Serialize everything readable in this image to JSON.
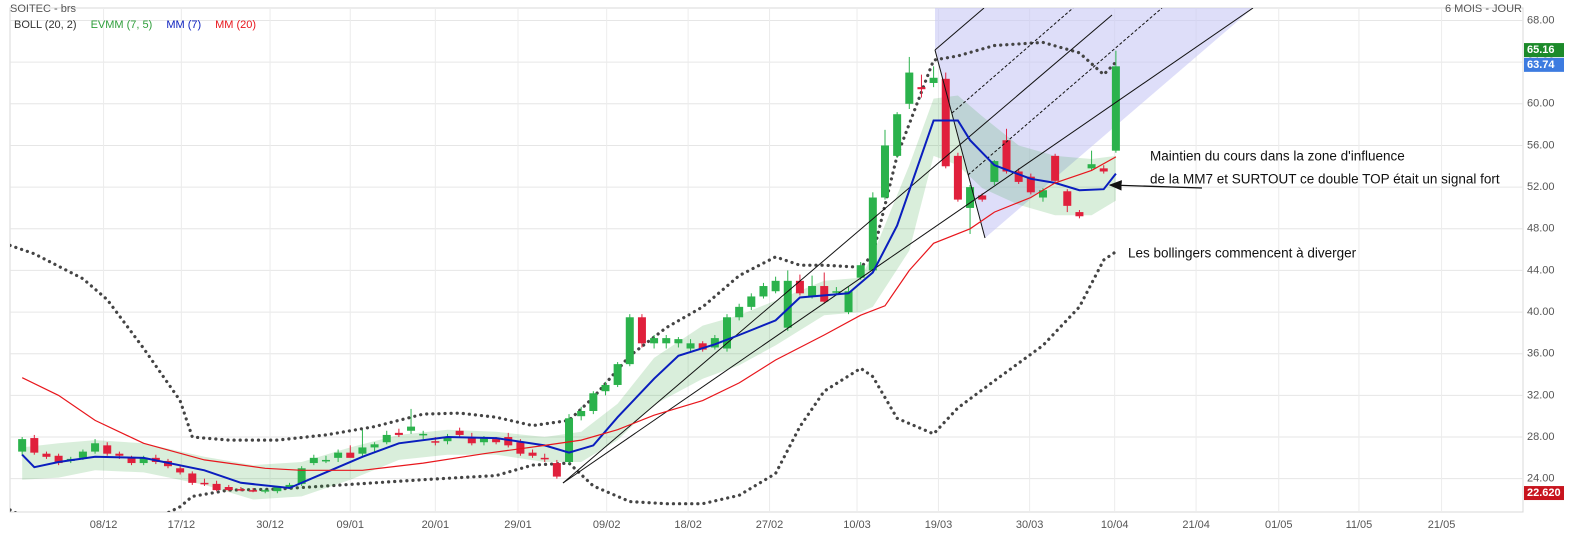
{
  "chart_data": {
    "type": "candlestick",
    "title": "SOITEC - brs",
    "subtitle": "6 MOIS - JOUR",
    "up_color": "#2bb24c",
    "down_color": "#e0203c",
    "open": [
      26.6,
      27.9,
      26.4,
      26.2,
      25.7,
      26,
      26.6,
      27.2,
      26.4,
      26,
      25.5,
      26,
      25.7,
      25,
      24.5,
      23.6,
      23.5,
      23.2,
      23,
      22.9,
      22.8,
      22.8,
      23.2,
      23.5,
      25.5,
      25.8,
      26,
      26.5,
      26.4,
      27,
      27.5,
      28.4,
      28.6,
      28.2,
      27.6,
      27.6,
      28.6,
      28,
      27.5,
      27.8,
      28,
      27.5,
      26.5,
      26,
      25.5,
      25.6,
      30,
      30.5,
      32.4,
      33,
      35,
      39.5,
      37,
      37,
      37,
      36.5,
      37,
      36.6,
      36.5,
      39.5,
      40.5,
      41.5,
      42,
      38.5,
      43,
      41.5,
      42.5,
      42,
      40,
      43.3,
      44,
      51,
      55,
      60,
      61.6,
      62,
      62.4,
      55,
      50,
      51.2,
      52.5,
      56.5,
      53.5,
      53,
      51,
      55,
      51.6,
      49.6,
      53.8,
      53.8,
      55.5
    ],
    "high": [
      28,
      28.2,
      26.6,
      26.4,
      26.1,
      26.8,
      27.8,
      27.5,
      26.6,
      26.2,
      26.2,
      26.3,
      25.9,
      25.2,
      24.7,
      24,
      23.8,
      23.4,
      23.2,
      23.1,
      23,
      23.3,
      23.6,
      25.2,
      26.3,
      26.2,
      26.8,
      27.2,
      28.7,
      27.5,
      28.6,
      28.8,
      30.7,
      28.6,
      28,
      28.3,
      28.9,
      28.4,
      28.1,
      28,
      28.4,
      27.8,
      26.8,
      26.4,
      25.8,
      30.2,
      30.9,
      32.4,
      33.3,
      35.2,
      39.8,
      39.8,
      37.8,
      37.8,
      37.6,
      37.4,
      37.2,
      37.8,
      39.8,
      40.8,
      41.8,
      42.8,
      43.4,
      44,
      43.6,
      43.5,
      43.8,
      42.4,
      42.4,
      44.8,
      51.5,
      57.5,
      59.2,
      64.5,
      62.8,
      63.6,
      63,
      55.3,
      52.2,
      51.4,
      54.6,
      57.6,
      53.8,
      53.3,
      51.9,
      55.2,
      51.8,
      49.8,
      55.5,
      54.1,
      65.1
    ],
    "low": [
      26.2,
      26.3,
      25.9,
      25.3,
      25.5,
      25.8,
      26.4,
      26.2,
      25.9,
      25.3,
      25.3,
      25.4,
      25,
      24.4,
      23.4,
      23.3,
      22.8,
      22.8,
      22.8,
      22.7,
      22.6,
      22.6,
      23,
      23.3,
      25.3,
      25.5,
      25.6,
      26.2,
      26.2,
      26.6,
      27.3,
      28,
      28.3,
      27.8,
      27.2,
      27.3,
      28,
      27.2,
      27.2,
      27.3,
      27,
      26.2,
      26,
      25.6,
      24,
      25.4,
      29.6,
      30.2,
      32,
      32.8,
      34.8,
      36.6,
      36.5,
      36.5,
      36.6,
      36.2,
      36.2,
      36.4,
      36.2,
      39.2,
      40.2,
      41.3,
      41.8,
      38.2,
      41.6,
      41.3,
      40.8,
      41.6,
      39.8,
      43.1,
      43.8,
      50.8,
      54.8,
      59.5,
      60.6,
      61.6,
      53.8,
      50.6,
      47.5,
      50.6,
      52.2,
      53.3,
      52.3,
      51.3,
      50.6,
      52.4,
      49.6,
      49,
      53.6,
      53.3,
      55.3
    ],
    "close": [
      27.8,
      26.5,
      26.1,
      25.5,
      25.9,
      26.6,
      27.4,
      26.4,
      26.2,
      25.5,
      26,
      25.6,
      25.2,
      24.6,
      23.6,
      23.5,
      22.9,
      22.9,
      22.9,
      22.8,
      22.9,
      23.2,
      23.4,
      25,
      26,
      25.8,
      26.5,
      26,
      27,
      27.3,
      28.2,
      28.2,
      29,
      28.3,
      27.5,
      28,
      28.2,
      27.4,
      27.9,
      27.5,
      27.2,
      26.4,
      26.2,
      25.9,
      24.2,
      29.8,
      30.5,
      32.2,
      33,
      35,
      39.5,
      37,
      37.5,
      37.5,
      37.4,
      37,
      36.4,
      37.5,
      39.5,
      40.5,
      41.5,
      42.5,
      43,
      43,
      41.8,
      42.5,
      41,
      42,
      42,
      44.5,
      51,
      56,
      59,
      63,
      61.4,
      62.5,
      54,
      50.8,
      52,
      50.8,
      54.5,
      53.5,
      52.5,
      51.5,
      51.7,
      52.6,
      50.2,
      49.2,
      54.2,
      53.5,
      63.6
    ],
    "series": [
      {
        "name": "BOLL (20, 2)",
        "type": "bollinger",
        "color": "#444444",
        "x": [
          -1,
          1,
          5,
          7,
          10,
          13,
          14,
          17,
          21,
          25,
          29,
          33,
          36,
          39,
          42,
          45,
          47,
          50,
          53,
          56,
          59,
          62,
          64,
          66,
          69,
          70,
          72,
          75,
          77,
          80,
          84,
          87,
          89,
          90
        ],
        "upper": [
          46.4,
          45.6,
          43.2,
          41.2,
          36.5,
          31.5,
          28,
          27.7,
          27.7,
          28.2,
          29,
          30.2,
          30.3,
          29.9,
          29.1,
          29.6,
          31.8,
          35.8,
          38.5,
          40.5,
          43.5,
          45.3,
          44.5,
          44.5,
          44.3,
          45.5,
          55,
          64.2,
          64.6,
          65.6,
          65.9,
          64.9,
          62.8,
          64
        ],
        "lower": [
          21,
          19.8,
          19.5,
          19.5,
          19.6,
          21.3,
          22.3,
          22.9,
          23,
          23.3,
          23.6,
          23.9,
          24.1,
          24.3,
          25.3,
          25.5,
          23.3,
          21.8,
          21.6,
          21.6,
          22.4,
          24.5,
          29,
          32.4,
          34.6,
          33.8,
          29.8,
          28.3,
          30.8,
          33.4,
          36.8,
          40.5,
          45,
          45.8
        ]
      },
      {
        "name": "EVMM (7, 5)",
        "type": "band",
        "color": "#2e9e3a",
        "x": [
          0,
          3,
          6,
          10,
          15,
          19,
          23,
          27,
          31,
          35,
          39,
          43,
          46,
          49,
          52,
          56,
          59,
          62,
          66,
          69,
          70,
          73,
          75,
          77,
          79,
          82,
          85,
          88,
          90
        ],
        "upper": [
          27,
          27.4,
          27.7,
          27.4,
          26.1,
          25.3,
          25.6,
          27,
          28.2,
          28.7,
          28.5,
          28,
          28.5,
          31.2,
          35.6,
          38.7,
          39.7,
          41.1,
          43,
          43.3,
          45.5,
          54.1,
          60.5,
          60.8,
          58.8,
          56,
          55,
          54.7,
          55
        ],
        "lower": [
          23.9,
          24.1,
          24.8,
          24.6,
          23.4,
          22,
          22.3,
          23.9,
          25.8,
          26.3,
          26.3,
          25.6,
          25.6,
          27.7,
          31.1,
          33.6,
          34.9,
          36.8,
          39.7,
          40,
          40.5,
          45.9,
          55,
          54.1,
          51.9,
          50.3,
          49.3,
          49.3,
          50.7
        ]
      },
      {
        "name": "MM (7)",
        "type": "line",
        "color": "#0a1ebe",
        "x": [
          0,
          1,
          3,
          6,
          10,
          15,
          18,
          22,
          24,
          28,
          31,
          35,
          39,
          43,
          45,
          47,
          49,
          52,
          54,
          57,
          59,
          62,
          64,
          66,
          68,
          70,
          72,
          75,
          77,
          78,
          80,
          83,
          85,
          87,
          89,
          90
        ],
        "values": [
          26.3,
          25.1,
          25.6,
          26.1,
          26,
          24.8,
          23.6,
          23.1,
          24.1,
          26.1,
          27.4,
          28,
          27.9,
          27.2,
          26.5,
          27.2,
          29.9,
          33.6,
          35.8,
          36.9,
          37.8,
          39.2,
          41.4,
          41.6,
          41.8,
          43.8,
          48.3,
          58.4,
          58.4,
          56.5,
          54.1,
          52.8,
          52.4,
          51.7,
          51.8,
          53.3
        ]
      },
      {
        "name": "MM (20)",
        "type": "line",
        "color": "#e8161c",
        "x": [
          0,
          3,
          6,
          10,
          15,
          20,
          23,
          28,
          33,
          38,
          43,
          46,
          49,
          52,
          56,
          59,
          62,
          66,
          69,
          71,
          73,
          75,
          78,
          80,
          83,
          85,
          88,
          90
        ],
        "values": [
          33.7,
          32,
          29.6,
          27.4,
          25.8,
          25,
          24.8,
          24.8,
          25.5,
          26.4,
          27.2,
          27.7,
          28.7,
          30.1,
          31.5,
          33.2,
          35.4,
          37.8,
          39.7,
          40.6,
          44,
          46.6,
          48,
          49.6,
          51,
          52.4,
          53.6,
          54.9
        ]
      }
    ],
    "price_labels": [
      {
        "value": 65.16,
        "label": "65.16",
        "color": "#1c8a2a"
      },
      {
        "value": 63.74,
        "label": "63.74",
        "color": "#3d7be0"
      },
      {
        "value": 22.62,
        "label": "22.620",
        "color": "#c8141e"
      }
    ],
    "annotations": [
      "Maintien du cours dans la zone d'influence",
      "de la MM7 et SURTOUT ce double TOP était un signal fort",
      "Les bollingers commencent à diverger"
    ],
    "xlim": [
      -1,
      123.5
    ],
    "xticks": [
      {
        "value": 6.7,
        "label": "08/12"
      },
      {
        "value": 13.1,
        "label": "17/12"
      },
      {
        "value": 20.4,
        "label": "30/12"
      },
      {
        "value": 27,
        "label": "09/01"
      },
      {
        "value": 34,
        "label": "20/01"
      },
      {
        "value": 40.8,
        "label": "29/01"
      },
      {
        "value": 48.1,
        "label": "09/02"
      },
      {
        "value": 54.8,
        "label": "18/02"
      },
      {
        "value": 61.5,
        "label": "27/02"
      },
      {
        "value": 68.7,
        "label": "10/03"
      },
      {
        "value": 75.4,
        "label": "19/03"
      },
      {
        "value": 82.9,
        "label": "30/03"
      },
      {
        "value": 89.9,
        "label": "10/04"
      },
      {
        "value": 96.6,
        "label": "21/04"
      },
      {
        "value": 103.4,
        "label": "01/05"
      },
      {
        "value": 110,
        "label": "11/05"
      },
      {
        "value": 116.8,
        "label": "21/05"
      }
    ],
    "ylim": [
      20.8,
      69.2
    ],
    "yticks": [
      {
        "value": 24,
        "label": "24.00"
      },
      {
        "value": 28,
        "label": "28.00"
      },
      {
        "value": 32,
        "label": "32.00"
      },
      {
        "value": 36,
        "label": "36.00"
      },
      {
        "value": 40,
        "label": "40.00"
      },
      {
        "value": 44,
        "label": "44.00"
      },
      {
        "value": 48,
        "label": "48.00"
      },
      {
        "value": 52,
        "label": "52.00"
      },
      {
        "value": 56,
        "label": "56.00"
      },
      {
        "value": 60,
        "label": "60.00"
      },
      {
        "value": 64,
        "label": "64.00"
      },
      {
        "value": 68,
        "label": "68.00"
      }
    ],
    "grid": true
  }
}
